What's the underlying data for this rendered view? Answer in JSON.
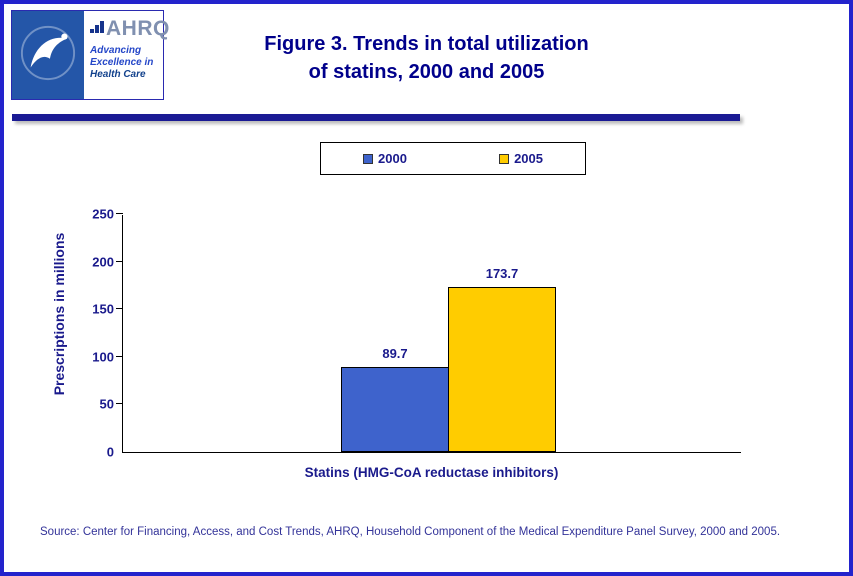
{
  "colors": {
    "page_border": "#2323cc",
    "title_navy": "#00008b",
    "divider_navy": "#1a1a94",
    "axis_text_navy": "#1a1a8c",
    "hhs_logo_blue": "#2456a8",
    "bar_2000_blue": "#3e63cc",
    "bar_2005_gold": "#ffcc00",
    "source_text_blue": "#333399"
  },
  "header": {
    "title_line1": "Figure 3. Trends in total utilization",
    "title_line2": "of statins, 2000 and 2005",
    "logo": {
      "acronym": "AHRQ",
      "tagline1": "Advancing",
      "tagline2": "Excellence in",
      "tagline3": "Health Care"
    }
  },
  "chart_data": {
    "type": "bar",
    "title": "Figure 3. Trends in total utilization of statins, 2000 and 2005",
    "categories": [
      "Statins (HMG-CoA reductase inhibitors)"
    ],
    "series": [
      {
        "name": "2000",
        "values": [
          89.7
        ],
        "color": "#3e63cc"
      },
      {
        "name": "2005",
        "values": [
          173.7
        ],
        "color": "#ffcc00"
      }
    ],
    "xlabel": "Statins (HMG-CoA reductase inhibitors)",
    "ylabel": "Prescriptions in millions",
    "ylim": [
      0,
      250
    ],
    "yticks": [
      0,
      50,
      100,
      150,
      200,
      250
    ],
    "grid": false,
    "legend_position": "top-center"
  },
  "source": {
    "text": "Source: Center for Financing, Access, and Cost Trends, AHRQ, Household Component of the Medical Expenditure Panel Survey, 2000 and 2005."
  }
}
